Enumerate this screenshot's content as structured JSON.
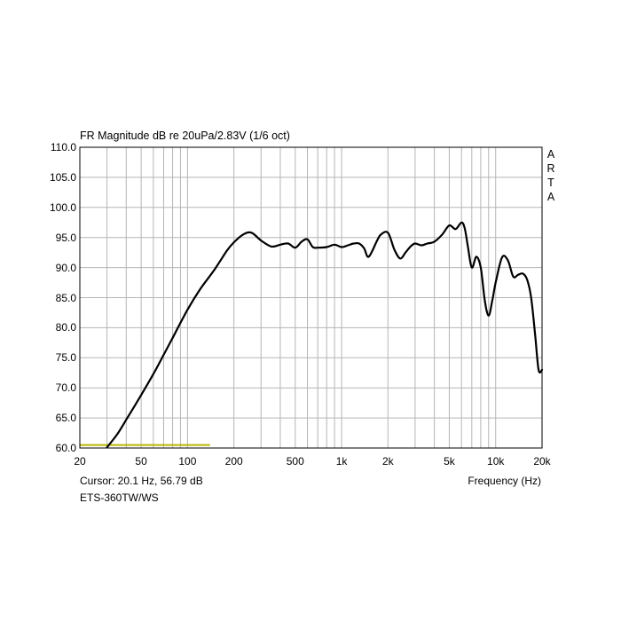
{
  "chart_data": {
    "type": "line",
    "title": "FR Magnitude dB re 20uPa/2.83V (1/6 oct)",
    "xlabel": "Frequency (Hz)",
    "ylabel": "",
    "x_scale": "log",
    "xlim": [
      20,
      20000
    ],
    "ylim": [
      60,
      110
    ],
    "grid": true,
    "x_tick_values": [
      20,
      50,
      100,
      200,
      500,
      1000,
      2000,
      5000,
      10000,
      20000
    ],
    "x_tick_labels": [
      "20",
      "50",
      "100",
      "200",
      "500",
      "1k",
      "2k",
      "5k",
      "10k",
      "20k"
    ],
    "y_tick_values": [
      60,
      65,
      70,
      75,
      80,
      85,
      90,
      95,
      100,
      105,
      110
    ],
    "y_tick_labels": [
      "60.0",
      "65.0",
      "70.0",
      "75.0",
      "80.0",
      "85.0",
      "90.0",
      "95.0",
      "100.0",
      "105.0",
      "110.0"
    ],
    "brand_label": "ARTA",
    "cursor_text": "Cursor: 20.1 Hz, 56.79 dB",
    "device_label": "ETS-360TW/WS",
    "series": [
      {
        "color": "#000000",
        "x": [
          30,
          35,
          40,
          50,
          60,
          70,
          80,
          100,
          120,
          150,
          180,
          200,
          230,
          260,
          300,
          350,
          400,
          450,
          500,
          550,
          600,
          650,
          700,
          800,
          900,
          1000,
          1100,
          1200,
          1300,
          1400,
          1500,
          1700,
          1800,
          2000,
          2200,
          2400,
          2600,
          2800,
          3000,
          3300,
          3600,
          4000,
          4500,
          5000,
          5500,
          6000,
          6300,
          6600,
          7000,
          7500,
          8000,
          8500,
          9000,
          9500,
          10000,
          11000,
          12000,
          13000,
          14000,
          15000,
          16000,
          17000,
          18000,
          19000,
          20000
        ],
        "y": [
          60.1,
          62.3,
          64.7,
          68.8,
          72.3,
          75.5,
          78.3,
          83.0,
          86.3,
          89.7,
          92.8,
          94.2,
          95.5,
          95.8,
          94.5,
          93.5,
          93.8,
          94.0,
          93.3,
          94.3,
          94.7,
          93.4,
          93.3,
          93.4,
          93.8,
          93.4,
          93.7,
          94.0,
          94.0,
          93.2,
          91.8,
          94.5,
          95.5,
          95.8,
          93.0,
          91.5,
          92.5,
          93.5,
          94.0,
          93.7,
          94.0,
          94.3,
          95.5,
          97.0,
          96.4,
          97.5,
          96.5,
          93.5,
          90.0,
          91.8,
          90.0,
          84.5,
          82.0,
          84.5,
          87.5,
          91.7,
          91.2,
          88.5,
          88.8,
          89.0,
          88.0,
          85.0,
          79.0,
          73.0,
          73.0
        ]
      }
    ],
    "reference_line": {
      "color": "#b8b800",
      "x": [
        20,
        140
      ],
      "y": 60.5
    }
  }
}
